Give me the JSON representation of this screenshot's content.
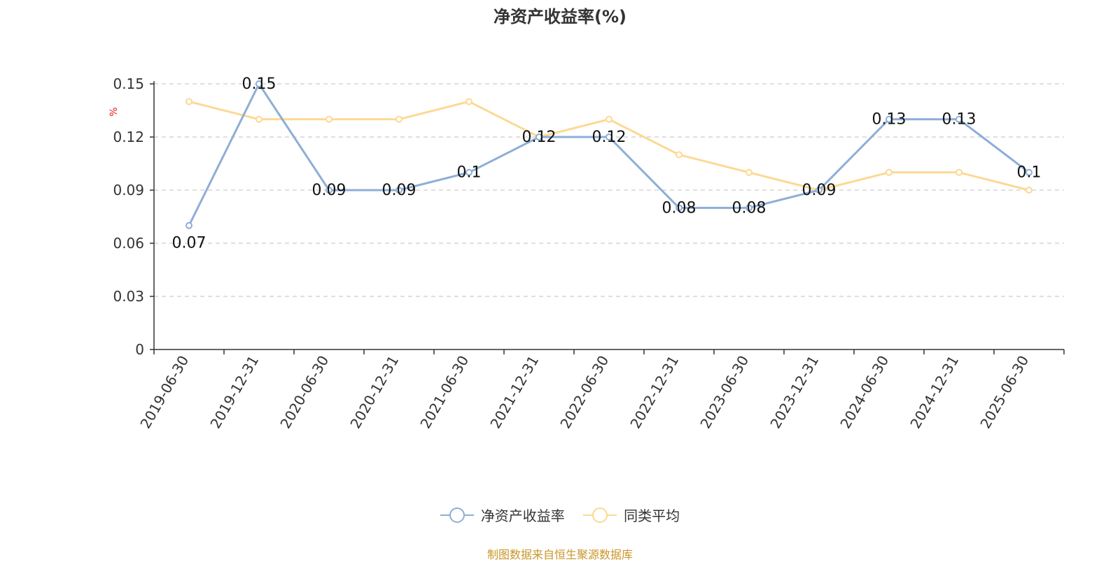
{
  "title": "净资产收益率(%)",
  "source_note": "制图数据来自恒生聚源数据库",
  "colors": {
    "series1": "#8eaed6",
    "series2": "#fcd993",
    "ylabel": "#e02020",
    "grid": "#cccccc",
    "axis": "#333333",
    "source": "#c9962a"
  },
  "chart_data": {
    "type": "line",
    "title": "净资产收益率(%)",
    "ylabel": "%",
    "xlabel": "",
    "ylim": [
      0,
      0.15
    ],
    "yticks": [
      "0",
      "0.03",
      "0.06",
      "0.09",
      "0.12",
      "0.15"
    ],
    "grid": true,
    "legend_position": "bottom",
    "categories": [
      "2019-06-30",
      "2019-12-31",
      "2020-06-30",
      "2020-12-31",
      "2021-06-30",
      "2021-12-31",
      "2022-06-30",
      "2022-12-31",
      "2023-06-30",
      "2023-12-31",
      "2024-06-30",
      "2024-12-31",
      "2025-06-30"
    ],
    "series": [
      {
        "name": "净资产收益率",
        "values": [
          0.07,
          0.15,
          0.09,
          0.09,
          0.1,
          0.12,
          0.12,
          0.08,
          0.08,
          0.09,
          0.13,
          0.13,
          0.1
        ],
        "labels": [
          "0.07",
          "0.15",
          "0.09",
          "0.09",
          "0.1",
          "0.12",
          "0.12",
          "0.08",
          "0.08",
          "0.09",
          "0.13",
          "0.13",
          "0.1"
        ]
      },
      {
        "name": "同类平均",
        "values": [
          0.14,
          0.13,
          0.13,
          0.13,
          0.14,
          0.12,
          0.13,
          0.11,
          0.1,
          0.09,
          0.1,
          0.1,
          0.09
        ]
      }
    ]
  }
}
